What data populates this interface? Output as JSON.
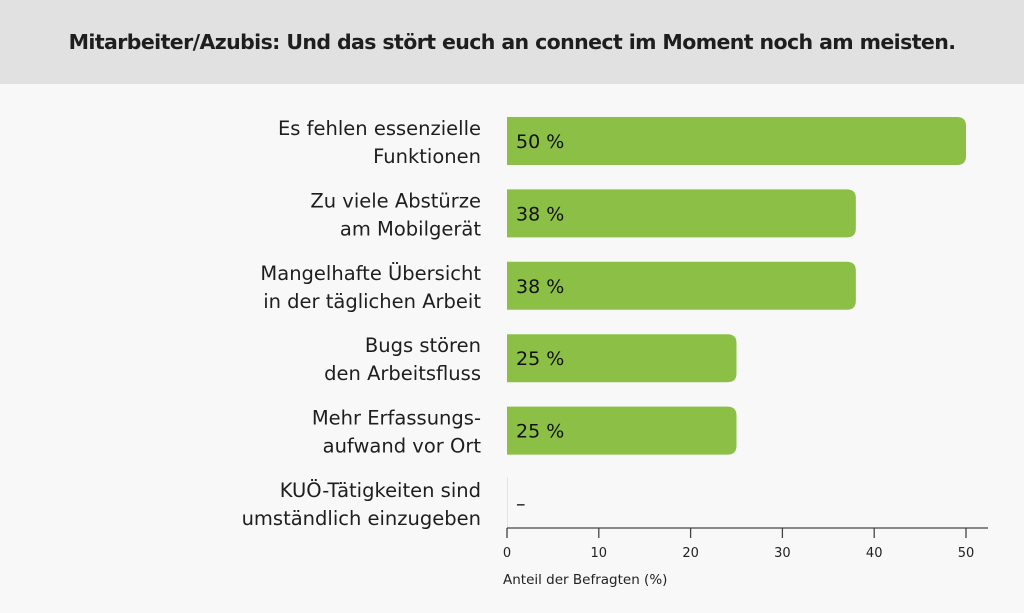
{
  "chart_data": {
    "type": "bar",
    "orientation": "horizontal",
    "title": "Mitarbeiter/Azubis: Und das stört euch an connect im Moment noch am meisten.",
    "categories": [
      [
        "Es fehlen essenzielle",
        "Funktionen"
      ],
      [
        "Zu viele Abstürze",
        "am Mobilgerät"
      ],
      [
        "Mangelhafte Übersicht",
        "in der täglichen Arbeit"
      ],
      [
        "Bugs stören",
        "den Arbeitsfluss"
      ],
      [
        "Mehr Erfassungs-",
        "aufwand vor Ort"
      ],
      [
        "KUÖ-Tätigkeiten sind",
        "umständlich einzugeben"
      ]
    ],
    "values": [
      50,
      38,
      38,
      25,
      25,
      0
    ],
    "value_labels": [
      "50 %",
      "38 %",
      "38 %",
      "25 %",
      "25 %",
      "–"
    ],
    "xlabel": "Anteil der Befragten (%)",
    "ylabel": "",
    "xlim": [
      0,
      52.5
    ],
    "xticks": [
      0,
      10,
      20,
      30,
      40,
      50
    ],
    "xtick_labels": [
      "0",
      "10",
      "20",
      "30",
      "40",
      "50"
    ],
    "grid": false,
    "bar_color": "#8bbf45"
  }
}
